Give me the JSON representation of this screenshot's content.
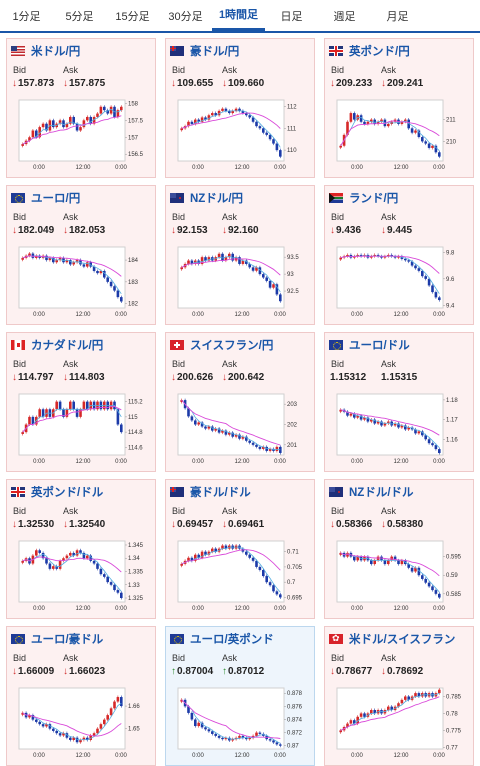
{
  "tabs": [
    {
      "label": "1分足",
      "active": false
    },
    {
      "label": "5分足",
      "active": false
    },
    {
      "label": "15分足",
      "active": false
    },
    {
      "label": "30分足",
      "active": false
    },
    {
      "label": "1時間足",
      "active": true
    },
    {
      "label": "日足",
      "active": false
    },
    {
      "label": "週足",
      "active": false
    },
    {
      "label": "月足",
      "active": false
    }
  ],
  "labels": {
    "bid": "Bid",
    "ask": "Ask"
  },
  "colors": {
    "down_arrow": "#d23030",
    "up_arrow": "#2b8a2b",
    "candle_up": "#d62828",
    "candle_down": "#1c3aa8",
    "ma_short": "#55aee0",
    "ma_long": "#d94ad9"
  },
  "pairs": [
    {
      "name": "米ドル/円",
      "flag": "us-flag",
      "dir": "down",
      "bid": "157.873",
      "ask": "157.875",
      "chart_data": {
        "type": "candlestick",
        "x_ticks": [
          "0:00",
          "12:00",
          "0:00"
        ],
        "y_ticks": [
          "156.5",
          "157",
          "157.5",
          "158"
        ],
        "ylim": [
          156.3,
          158.1
        ],
        "close": [
          156.8,
          156.9,
          157.0,
          157.2,
          157.0,
          157.3,
          157.4,
          157.2,
          157.5,
          157.3,
          157.4,
          157.5,
          157.3,
          157.4,
          157.6,
          157.4,
          157.2,
          157.3,
          157.5,
          157.6,
          157.4,
          157.6,
          157.7,
          157.9,
          157.8,
          157.7,
          157.9,
          157.6,
          157.8,
          157.9
        ]
      }
    },
    {
      "name": "豪ドル/円",
      "flag": "au-flag",
      "dir": "down",
      "bid": "109.655",
      "ask": "109.660",
      "chart_data": {
        "type": "candlestick",
        "x_ticks": [
          "0:00",
          "12:00",
          "0:00"
        ],
        "y_ticks": [
          "110",
          "111",
          "112"
        ],
        "ylim": [
          109.5,
          112.3
        ],
        "close": [
          111.0,
          111.1,
          111.3,
          111.2,
          111.4,
          111.3,
          111.5,
          111.4,
          111.6,
          111.7,
          111.6,
          111.8,
          111.9,
          111.8,
          111.7,
          111.8,
          111.9,
          111.8,
          111.7,
          111.6,
          111.5,
          111.3,
          111.1,
          111.0,
          110.8,
          110.7,
          110.5,
          110.3,
          110.0,
          109.7
        ]
      }
    },
    {
      "name": "英ポンド/円",
      "flag": "gb-flag",
      "dir": "down",
      "bid": "209.233",
      "ask": "209.241",
      "chart_data": {
        "type": "candlestick",
        "x_ticks": [
          "0:00",
          "12:00",
          "0:00"
        ],
        "y_ticks": [
          "210",
          "211"
        ],
        "ylim": [
          209.1,
          211.9
        ],
        "close": [
          209.8,
          210.3,
          210.9,
          211.3,
          211.0,
          211.2,
          210.9,
          210.8,
          210.9,
          211.0,
          210.8,
          210.9,
          211.0,
          210.7,
          210.8,
          210.9,
          211.0,
          210.8,
          210.9,
          211.0,
          210.6,
          210.4,
          210.5,
          210.2,
          210.0,
          209.9,
          209.7,
          209.8,
          209.5,
          209.3
        ]
      }
    },
    {
      "name": "ユーロ/円",
      "flag": "eu-flag",
      "dir": "down",
      "bid": "182.049",
      "ask": "182.053",
      "chart_data": {
        "type": "candlestick",
        "x_ticks": [
          "0:00",
          "12:00",
          "0:00"
        ],
        "y_ticks": [
          "182",
          "183",
          "184"
        ],
        "ylim": [
          181.8,
          184.6
        ],
        "close": [
          184.1,
          184.2,
          184.3,
          184.1,
          184.2,
          184.1,
          184.2,
          184.0,
          184.1,
          183.9,
          184.0,
          184.1,
          183.9,
          184.0,
          183.8,
          183.9,
          184.0,
          183.8,
          183.7,
          183.9,
          183.7,
          183.5,
          183.4,
          183.5,
          183.2,
          183.0,
          182.8,
          182.6,
          182.3,
          182.1
        ]
      }
    },
    {
      "name": "NZドル/円",
      "flag": "nz-flag",
      "dir": "down",
      "bid": "92.153",
      "ask": "92.160",
      "chart_data": {
        "type": "candlestick",
        "x_ticks": [
          "0:00",
          "12:00",
          "0:00"
        ],
        "y_ticks": [
          "92.5",
          "93",
          "93.5"
        ],
        "ylim": [
          92.0,
          93.8
        ],
        "close": [
          93.2,
          93.3,
          93.4,
          93.3,
          93.4,
          93.3,
          93.5,
          93.4,
          93.5,
          93.4,
          93.5,
          93.6,
          93.4,
          93.5,
          93.6,
          93.4,
          93.5,
          93.3,
          93.4,
          93.3,
          93.2,
          93.1,
          93.2,
          93.0,
          92.9,
          92.8,
          92.6,
          92.7,
          92.4,
          92.2
        ]
      }
    },
    {
      "name": "ランド/円",
      "flag": "za-flag",
      "dir": "down",
      "bid": "9.436",
      "ask": "9.445",
      "chart_data": {
        "type": "candlestick",
        "x_ticks": [
          "0:00",
          "12:00",
          "0:00"
        ],
        "y_ticks": [
          "9.4",
          "9.6",
          "9.8"
        ],
        "ylim": [
          9.38,
          9.84
        ],
        "close": [
          9.76,
          9.77,
          9.78,
          9.76,
          9.77,
          9.78,
          9.77,
          9.78,
          9.76,
          9.77,
          9.78,
          9.77,
          9.76,
          9.77,
          9.78,
          9.77,
          9.76,
          9.77,
          9.75,
          9.74,
          9.73,
          9.7,
          9.68,
          9.66,
          9.62,
          9.6,
          9.55,
          9.5,
          9.46,
          9.44
        ]
      }
    },
    {
      "name": "カナダドル/円",
      "flag": "ca-flag",
      "dir": "down",
      "bid": "114.797",
      "ask": "114.803",
      "chart_data": {
        "type": "candlestick",
        "x_ticks": [
          "0:00",
          "12:00",
          "0:00"
        ],
        "y_ticks": [
          "114.6",
          "114.8",
          "115",
          "115.2"
        ],
        "ylim": [
          114.5,
          115.3
        ],
        "close": [
          114.8,
          114.9,
          115.0,
          114.9,
          115.0,
          115.1,
          115.0,
          115.1,
          115.0,
          115.1,
          115.2,
          115.1,
          115.0,
          115.1,
          115.2,
          115.1,
          115.0,
          115.1,
          115.2,
          115.1,
          115.2,
          115.1,
          115.2,
          115.1,
          115.2,
          115.1,
          115.2,
          115.1,
          114.9,
          114.8
        ]
      }
    },
    {
      "name": "スイスフラン/円",
      "flag": "ch-flag",
      "dir": "down",
      "bid": "200.626",
      "ask": "200.642",
      "chart_data": {
        "type": "candlestick",
        "x_ticks": [
          "0:00",
          "12:00",
          "0:00"
        ],
        "y_ticks": [
          "201",
          "202",
          "203"
        ],
        "ylim": [
          200.5,
          203.5
        ],
        "close": [
          203.2,
          202.8,
          202.4,
          202.2,
          202.0,
          202.1,
          201.9,
          201.8,
          201.9,
          201.7,
          201.8,
          201.6,
          201.7,
          201.5,
          201.6,
          201.4,
          201.5,
          201.3,
          201.4,
          201.2,
          201.1,
          201.0,
          200.9,
          200.8,
          200.9,
          200.7,
          200.8,
          200.7,
          200.9,
          200.6
        ]
      }
    },
    {
      "name": "ユーロ/ドル",
      "flag": "eu-flag",
      "dir": "none",
      "bid": "1.15312",
      "ask": "1.15315",
      "chart_data": {
        "type": "candlestick",
        "x_ticks": [
          "0:00",
          "12:00",
          "0:00"
        ],
        "y_ticks": [
          "1.16",
          "1.17",
          "1.18"
        ],
        "ylim": [
          1.152,
          1.183
        ],
        "close": [
          1.175,
          1.174,
          1.172,
          1.173,
          1.171,
          1.172,
          1.17,
          1.171,
          1.169,
          1.17,
          1.168,
          1.169,
          1.167,
          1.168,
          1.169,
          1.167,
          1.168,
          1.166,
          1.167,
          1.165,
          1.166,
          1.165,
          1.163,
          1.164,
          1.162,
          1.16,
          1.158,
          1.157,
          1.155,
          1.153
        ]
      }
    },
    {
      "name": "英ポンド/ドル",
      "flag": "gb-flag",
      "dir": "down",
      "bid": "1.32530",
      "ask": "1.32540",
      "chart_data": {
        "type": "candlestick",
        "x_ticks": [
          "0:00",
          "12:00",
          "0:00"
        ],
        "y_ticks": [
          "1.325",
          "1.33",
          "1.335",
          "1.34",
          "1.345"
        ],
        "ylim": [
          1.3235,
          1.3465
        ],
        "close": [
          1.339,
          1.34,
          1.338,
          1.341,
          1.343,
          1.342,
          1.34,
          1.338,
          1.336,
          1.337,
          1.336,
          1.339,
          1.34,
          1.341,
          1.342,
          1.341,
          1.343,
          1.342,
          1.34,
          1.341,
          1.339,
          1.338,
          1.336,
          1.334,
          1.333,
          1.331,
          1.33,
          1.328,
          1.327,
          1.325
        ]
      }
    },
    {
      "name": "豪ドル/ドル",
      "flag": "au-flag",
      "dir": "down",
      "bid": "0.69457",
      "ask": "0.69461",
      "chart_data": {
        "type": "candlestick",
        "x_ticks": [
          "0:00",
          "12:00",
          "0:00"
        ],
        "y_ticks": [
          "0.695",
          "0.7",
          "0.705",
          "0.71"
        ],
        "ylim": [
          0.6935,
          0.7135
        ],
        "close": [
          0.706,
          0.707,
          0.708,
          0.707,
          0.709,
          0.708,
          0.71,
          0.709,
          0.71,
          0.711,
          0.71,
          0.711,
          0.712,
          0.711,
          0.712,
          0.711,
          0.712,
          0.711,
          0.71,
          0.709,
          0.708,
          0.707,
          0.705,
          0.704,
          0.702,
          0.7,
          0.699,
          0.697,
          0.696,
          0.695
        ]
      }
    },
    {
      "name": "NZドル/ドル",
      "flag": "nz-flag",
      "dir": "down",
      "bid": "0.58366",
      "ask": "0.58380",
      "chart_data": {
        "type": "candlestick",
        "x_ticks": [
          "0:00",
          "12:00",
          "0:00"
        ],
        "y_ticks": [
          "0.585",
          "0.59",
          "0.595"
        ],
        "ylim": [
          0.5828,
          0.5992
        ],
        "close": [
          0.596,
          0.595,
          0.596,
          0.595,
          0.594,
          0.595,
          0.594,
          0.595,
          0.594,
          0.593,
          0.594,
          0.595,
          0.594,
          0.593,
          0.594,
          0.595,
          0.594,
          0.593,
          0.594,
          0.593,
          0.592,
          0.591,
          0.592,
          0.59,
          0.589,
          0.588,
          0.587,
          0.586,
          0.585,
          0.584
        ]
      }
    },
    {
      "name": "ユーロ/豪ドル",
      "flag": "eu-flag",
      "dir": "down",
      "bid": "1.66009",
      "ask": "1.66023",
      "chart_data": {
        "type": "candlestick",
        "x_ticks": [
          "0:00",
          "12:00",
          "0:00"
        ],
        "y_ticks": [
          "1.65",
          "1.66"
        ],
        "ylim": [
          1.641,
          1.668
        ],
        "close": [
          1.657,
          1.655,
          1.656,
          1.654,
          1.653,
          1.652,
          1.651,
          1.652,
          1.65,
          1.649,
          1.648,
          1.647,
          1.648,
          1.646,
          1.645,
          1.646,
          1.644,
          1.645,
          1.646,
          1.645,
          1.647,
          1.648,
          1.65,
          1.652,
          1.654,
          1.656,
          1.659,
          1.662,
          1.664,
          1.66
        ]
      }
    },
    {
      "name": "ユーロ/英ポンド",
      "flag": "eu-flag",
      "dir": "up",
      "bid": "0.87004",
      "ask": "0.87012",
      "chart_data": {
        "type": "candlestick",
        "x_ticks": [
          "0:00",
          "12:00",
          "0:00"
        ],
        "y_ticks": [
          "0.87",
          "0.872",
          "0.874",
          "0.876",
          "0.878"
        ],
        "ylim": [
          0.8695,
          0.8788
        ],
        "close": [
          0.877,
          0.876,
          0.875,
          0.874,
          0.873,
          0.8735,
          0.8728,
          0.8725,
          0.8722,
          0.8718,
          0.8715,
          0.8712,
          0.871,
          0.8712,
          0.8708,
          0.871,
          0.8712,
          0.8715,
          0.8712,
          0.871,
          0.8712,
          0.8715,
          0.872,
          0.8718,
          0.8715,
          0.871,
          0.8708,
          0.8705,
          0.8702,
          0.87
        ]
      }
    },
    {
      "name": "米ドル/スイスフラン",
      "flag": "hk-flag",
      "dir": "down",
      "bid": "0.78677",
      "ask": "0.78692",
      "chart_data": {
        "type": "candlestick",
        "x_ticks": [
          "0:00",
          "12:00",
          "0:00"
        ],
        "y_ticks": [
          "0.77",
          "0.775",
          "0.78",
          "0.785"
        ],
        "ylim": [
          0.7695,
          0.7875
        ],
        "close": [
          0.775,
          0.776,
          0.777,
          0.778,
          0.777,
          0.779,
          0.78,
          0.779,
          0.78,
          0.781,
          0.78,
          0.781,
          0.78,
          0.781,
          0.782,
          0.781,
          0.782,
          0.783,
          0.784,
          0.785,
          0.784,
          0.785,
          0.786,
          0.785,
          0.786,
          0.785,
          0.786,
          0.785,
          0.786,
          0.787
        ]
      }
    }
  ]
}
